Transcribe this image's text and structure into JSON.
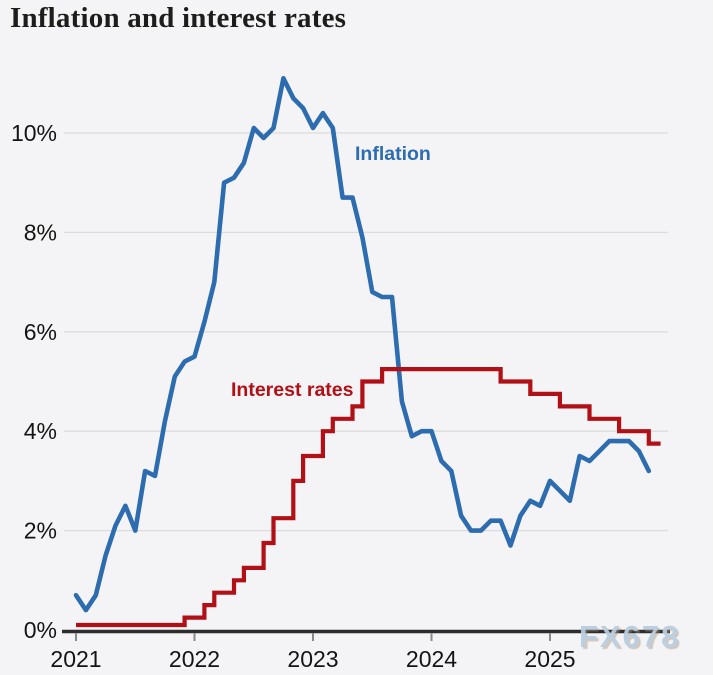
{
  "title": "Inflation and interest rates",
  "series_labels": {
    "inflation": "Inflation",
    "interest_rates": "Interest rates"
  },
  "watermark": "FX678",
  "colors": {
    "background": "#f4f4f6",
    "inflation": "#2d6daf",
    "interest_rates": "#b11116",
    "grid": "#dcdcdc",
    "axis": "#2d2d2d",
    "tick_marks": "#8a8a8a",
    "tick_text": "#141414",
    "title_text": "#1d1d1b",
    "watermark_text": "#b9cedf"
  },
  "chart_data": {
    "type": "line",
    "title": "Inflation and interest rates",
    "x_unit": "month",
    "x_range": [
      "2021-01",
      "2025-12"
    ],
    "x_ticks": [
      "2021",
      "2022",
      "2023",
      "2024",
      "2025"
    ],
    "y_ticks": [
      "0%",
      "2%",
      "4%",
      "6%",
      "8%",
      "10%"
    ],
    "ylim": [
      0,
      11.5
    ],
    "grid": "horizontal",
    "legend": "inline-labels",
    "series": [
      {
        "name": "Inflation",
        "color": "#2d6daf",
        "style": "line",
        "start": "2021-01",
        "frequency": "monthly",
        "unit": "%",
        "values": [
          0.7,
          0.4,
          0.7,
          1.5,
          2.1,
          2.5,
          2.0,
          3.2,
          3.1,
          4.2,
          5.1,
          5.4,
          5.5,
          6.2,
          7.0,
          9.0,
          9.1,
          9.4,
          10.1,
          9.9,
          10.1,
          11.1,
          10.7,
          10.5,
          10.1,
          10.4,
          10.1,
          8.7,
          8.7,
          7.9,
          6.8,
          6.7,
          6.7,
          4.6,
          3.9,
          4.0,
          4.0,
          3.4,
          3.2,
          2.3,
          2.0,
          2.0,
          2.2,
          2.2,
          1.7,
          2.3,
          2.6,
          2.5,
          3.0,
          2.8,
          2.6,
          3.5,
          3.4,
          3.6,
          3.8,
          3.8,
          3.8,
          3.6,
          3.2
        ]
      },
      {
        "name": "Interest rates",
        "color": "#b11116",
        "style": "step-after",
        "unit": "%",
        "changes": [
          {
            "date": "2021-01",
            "rate": 0.1
          },
          {
            "date": "2021-12",
            "rate": 0.25
          },
          {
            "date": "2022-02",
            "rate": 0.5
          },
          {
            "date": "2022-03",
            "rate": 0.75
          },
          {
            "date": "2022-05",
            "rate": 1.0
          },
          {
            "date": "2022-06",
            "rate": 1.25
          },
          {
            "date": "2022-08",
            "rate": 1.75
          },
          {
            "date": "2022-09",
            "rate": 2.25
          },
          {
            "date": "2022-11",
            "rate": 3.0
          },
          {
            "date": "2022-12",
            "rate": 3.5
          },
          {
            "date": "2023-02",
            "rate": 4.0
          },
          {
            "date": "2023-03",
            "rate": 4.25
          },
          {
            "date": "2023-05",
            "rate": 4.5
          },
          {
            "date": "2023-06",
            "rate": 5.0
          },
          {
            "date": "2023-08",
            "rate": 5.25
          },
          {
            "date": "2024-08",
            "rate": 5.0
          },
          {
            "date": "2024-11",
            "rate": 4.75
          },
          {
            "date": "2025-02",
            "rate": 4.5
          },
          {
            "date": "2025-05",
            "rate": 4.25
          },
          {
            "date": "2025-08",
            "rate": 4.0
          },
          {
            "date": "2025-11",
            "rate": 3.75
          }
        ],
        "end": "2025-12"
      }
    ]
  }
}
